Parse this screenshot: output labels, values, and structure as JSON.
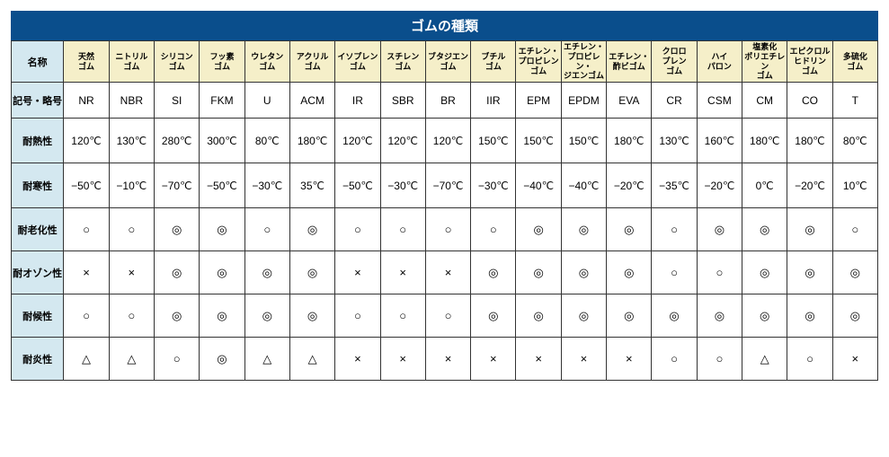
{
  "title": "ゴムの種類",
  "row_label_bg": "#d4e8f0",
  "col_head_bg": "#f5efc9",
  "title_bg": "#0a4e8c",
  "title_fg": "#ffffff",
  "border_color": "#333333",
  "row_labels": [
    "名称",
    "記号・略号",
    "耐熱性",
    "耐寒性",
    "耐老化性",
    "耐オゾン性",
    "耐候性",
    "耐炎性"
  ],
  "columns": [
    "天然\nゴム",
    "ニトリル\nゴム",
    "シリコン\nゴム",
    "フッ素\nゴム",
    "ウレタン\nゴム",
    "アクリル\nゴム",
    "イソプレン\nゴム",
    "スチレン\nゴム",
    "ブタジエン\nゴム",
    "ブチル\nゴム",
    "エチレン・\nプロピレン\nゴム",
    "エチレン・\nプロピレン・\nジエンゴム",
    "エチレン・\n酢ビゴム",
    "クロロ\nプレン\nゴム",
    "ハイ\nパロン",
    "塩素化\nポリエチレン\nゴム",
    "エピクロル\nヒドリン\nゴム",
    "多硫化\nゴム"
  ],
  "symbols": [
    "NR",
    "NBR",
    "SI",
    "FKM",
    "U",
    "ACM",
    "IR",
    "SBR",
    "BR",
    "IIR",
    "EPM",
    "EPDM",
    "EVA",
    "CR",
    "CSM",
    "CM",
    "CO",
    "T"
  ],
  "heat": [
    "120℃",
    "130℃",
    "280℃",
    "300℃",
    "80℃",
    "180℃",
    "120℃",
    "120℃",
    "120℃",
    "150℃",
    "150℃",
    "150℃",
    "180℃",
    "130℃",
    "160℃",
    "180℃",
    "180℃",
    "80℃"
  ],
  "cold": [
    "−50℃",
    "−10℃",
    "−70℃",
    "−50℃",
    "−30℃",
    "35℃",
    "−50℃",
    "−30℃",
    "−70℃",
    "−30℃",
    "−40℃",
    "−40℃",
    "−20℃",
    "−35℃",
    "−20℃",
    "0℃",
    "−20℃",
    "10℃"
  ],
  "aging": [
    "○",
    "○",
    "◎",
    "◎",
    "○",
    "◎",
    "○",
    "○",
    "○",
    "○",
    "◎",
    "◎",
    "◎",
    "○",
    "◎",
    "◎",
    "◎",
    "○"
  ],
  "ozone": [
    "×",
    "×",
    "◎",
    "◎",
    "◎",
    "◎",
    "×",
    "×",
    "×",
    "◎",
    "◎",
    "◎",
    "◎",
    "○",
    "○",
    "◎",
    "◎",
    "◎"
  ],
  "weather": [
    "○",
    "○",
    "◎",
    "◎",
    "◎",
    "◎",
    "○",
    "○",
    "○",
    "◎",
    "◎",
    "◎",
    "◎",
    "◎",
    "◎",
    "◎",
    "◎",
    "◎"
  ],
  "flame": [
    "△",
    "△",
    "○",
    "◎",
    "△",
    "△",
    "×",
    "×",
    "×",
    "×",
    "×",
    "×",
    "×",
    "○",
    "○",
    "△",
    "○",
    "×"
  ]
}
